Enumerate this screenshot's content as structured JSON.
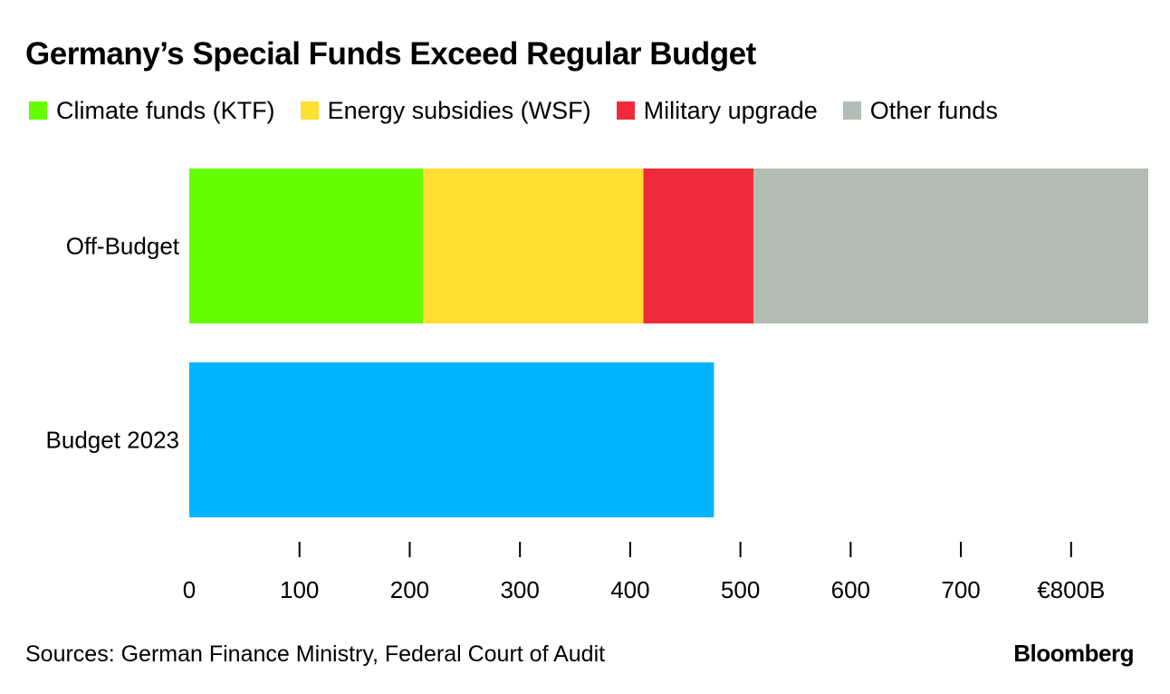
{
  "chart_data": {
    "type": "bar",
    "orientation": "horizontal",
    "stacked": true,
    "title": "Germany’s Special Funds Exceed Regular Budget",
    "categories": [
      "Off-Budget",
      "Budget 2023"
    ],
    "series": [
      {
        "name": "Climate funds (KTF)",
        "color": "#66ff00",
        "values": [
          212,
          0
        ]
      },
      {
        "name": "Energy subsidies (WSF)",
        "color": "#ffdf33",
        "values": [
          200,
          0
        ]
      },
      {
        "name": "Military upgrade",
        "color": "#ef2b3b",
        "values": [
          100,
          0
        ]
      },
      {
        "name": "Other funds",
        "color": "#b3bdb3",
        "values": [
          358,
          0
        ]
      },
      {
        "name": "Budget",
        "color": "#00b5ff",
        "values": [
          0,
          476
        ],
        "in_legend": false
      }
    ],
    "xlim": [
      0,
      870
    ],
    "ticks": [
      {
        "value": 0,
        "label": "0"
      },
      {
        "value": 100,
        "label": "100"
      },
      {
        "value": 200,
        "label": "200"
      },
      {
        "value": 300,
        "label": "300"
      },
      {
        "value": 400,
        "label": "400"
      },
      {
        "value": 500,
        "label": "500"
      },
      {
        "value": 600,
        "label": "600"
      },
      {
        "value": 700,
        "label": "700"
      },
      {
        "value": 800,
        "label": "€800B"
      }
    ],
    "xlabel": "",
    "ylabel": "",
    "legend_position": "top-left",
    "grid": false
  },
  "footer": {
    "source": "Sources: German Finance Ministry, Federal Court of Audit",
    "brand": "Bloomberg"
  }
}
